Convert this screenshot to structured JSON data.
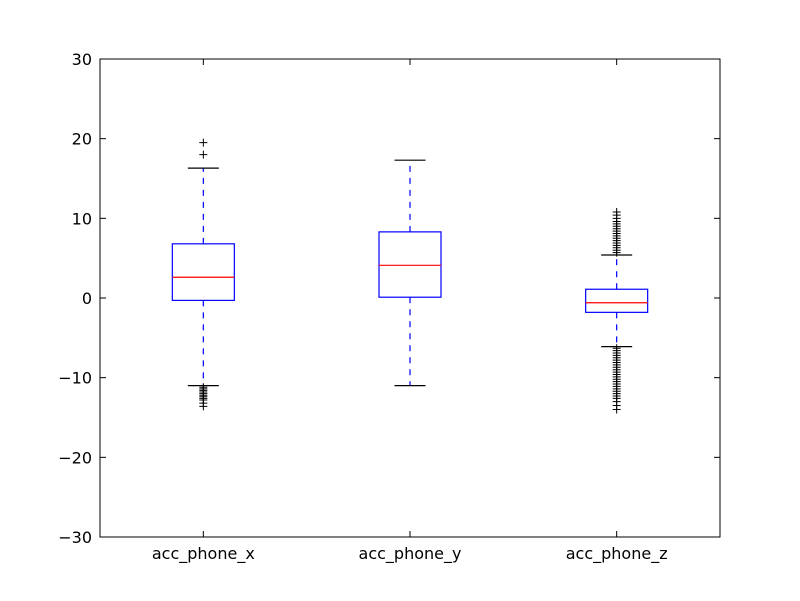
{
  "chart_data": {
    "type": "box",
    "title": "",
    "xlabel": "",
    "ylabel": "",
    "ylim": [
      -30,
      30
    ],
    "yticks": [
      -30,
      -20,
      -10,
      0,
      10,
      20,
      30
    ],
    "ytick_labels": [
      "−30",
      "−20",
      "−10",
      "0",
      "10",
      "20",
      "30"
    ],
    "grid": false,
    "colors": {
      "box": "#0000ff",
      "whisker": "#0000ff",
      "median": "#ff0000",
      "cap": "#000000",
      "flier": "#000000",
      "axes": "#000000"
    },
    "categories": [
      "acc_phone_x",
      "acc_phone_y",
      "acc_phone_z"
    ],
    "boxes": [
      {
        "name": "acc_phone_x",
        "whislo": -11.0,
        "q1": -0.3,
        "median": 2.6,
        "q3": 6.8,
        "whishi": 16.3,
        "fliers": [
          19.5,
          18.0,
          -11.2,
          -11.4,
          -11.6,
          -11.8,
          -12.0,
          -12.2,
          -12.4,
          -12.6,
          -12.8,
          -13.2,
          -13.6
        ]
      },
      {
        "name": "acc_phone_y",
        "whislo": -11.0,
        "q1": 0.1,
        "median": 4.1,
        "q3": 8.3,
        "whishi": 17.3,
        "fliers": []
      },
      {
        "name": "acc_phone_z",
        "whislo": -6.1,
        "q1": -1.8,
        "median": -0.6,
        "q3": 1.1,
        "whishi": 5.4,
        "fliers": [
          5.7,
          6.0,
          6.3,
          6.6,
          6.9,
          7.2,
          7.5,
          7.8,
          8.1,
          8.4,
          8.7,
          9.0,
          9.3,
          9.6,
          10.0,
          10.4,
          10.8,
          -6.3,
          -6.6,
          -6.9,
          -7.2,
          -7.5,
          -7.8,
          -8.1,
          -8.4,
          -8.7,
          -9.0,
          -9.3,
          -9.6,
          -9.9,
          -10.2,
          -10.5,
          -10.8,
          -11.1,
          -11.4,
          -11.7,
          -12.0,
          -12.3,
          -12.6,
          -13.0,
          -13.5,
          -14.0
        ]
      }
    ]
  }
}
